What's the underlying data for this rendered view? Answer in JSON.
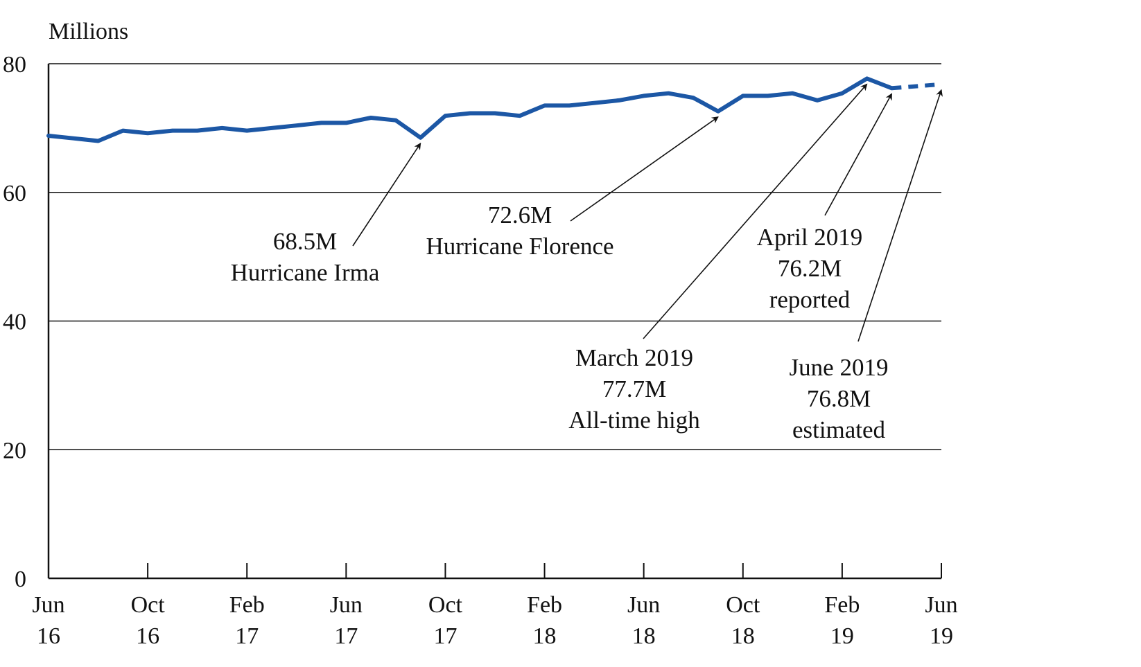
{
  "chart_data": {
    "type": "line",
    "title": "",
    "ylabel": "Millions",
    "xlabel": "",
    "ylim": [
      0,
      80
    ],
    "y_ticks": [
      "0",
      "20",
      "40",
      "60",
      "80"
    ],
    "grid": "horizontal at 20, 40, 60, 80",
    "x_ticks": [
      {
        "month": 0,
        "line1": "Jun",
        "line2": "16"
      },
      {
        "month": 4,
        "line1": "Oct",
        "line2": "16"
      },
      {
        "month": 8,
        "line1": "Feb",
        "line2": "17"
      },
      {
        "month": 12,
        "line1": "Jun",
        "line2": "17"
      },
      {
        "month": 16,
        "line1": "Oct",
        "line2": "17"
      },
      {
        "month": 20,
        "line1": "Feb",
        "line2": "18"
      },
      {
        "month": 24,
        "line1": "Jun",
        "line2": "18"
      },
      {
        "month": 28,
        "line1": "Oct",
        "line2": "18"
      },
      {
        "month": 32,
        "line1": "Feb",
        "line2": "19"
      },
      {
        "month": 36,
        "line1": "Jun",
        "line2": "19"
      }
    ],
    "series": [
      {
        "style": "solid",
        "color": "#1c57a5",
        "x": [
          "Jun 16",
          "Jul 16",
          "Aug 16",
          "Sep 16",
          "Oct 16",
          "Nov 16",
          "Dec 16",
          "Jan 17",
          "Feb 17",
          "Mar 17",
          "Apr 17",
          "May 17",
          "Jun 17",
          "Jul 17",
          "Aug 17",
          "Sep 17",
          "Oct 17",
          "Nov 17",
          "Dec 17",
          "Jan 18",
          "Feb 18",
          "Mar 18",
          "Apr 18",
          "May 18",
          "Jun 18",
          "Jul 18",
          "Aug 18",
          "Sep 18",
          "Oct 18",
          "Nov 18",
          "Dec 18",
          "Jan 19",
          "Feb 19",
          "Mar 19",
          "Apr 19"
        ],
        "values": [
          68.8,
          68.4,
          68.0,
          69.6,
          69.2,
          69.6,
          69.6,
          70.0,
          69.6,
          70.0,
          70.4,
          70.8,
          70.8,
          71.6,
          71.2,
          68.5,
          71.9,
          72.3,
          72.3,
          71.9,
          73.5,
          73.5,
          73.9,
          74.3,
          75.0,
          75.4,
          74.7,
          72.6,
          75.0,
          75.0,
          75.4,
          74.3,
          75.4,
          77.7,
          76.2
        ]
      },
      {
        "style": "dashed",
        "color": "#1c57a5",
        "x": [
          "Apr 19",
          "May 19",
          "Jun 19"
        ],
        "values": [
          76.2,
          76.5,
          76.8
        ]
      }
    ],
    "annotations": [
      {
        "lines": [
          "68.5M",
          "Hurricane Irma"
        ],
        "target_month": 15,
        "target_value": 68.5
      },
      {
        "lines": [
          "72.6M",
          "Hurricane Florence"
        ],
        "target_month": 27,
        "target_value": 72.6
      },
      {
        "lines": [
          "March 2019",
          "77.7M",
          "All-time high"
        ],
        "target_month": 33,
        "target_value": 77.7
      },
      {
        "lines": [
          "April 2019",
          "76.2M",
          "reported"
        ],
        "target_month": 34,
        "target_value": 76.2
      },
      {
        "lines": [
          "June 2019",
          "76.8M",
          "estimated"
        ],
        "target_month": 36,
        "target_value": 76.8
      }
    ]
  }
}
